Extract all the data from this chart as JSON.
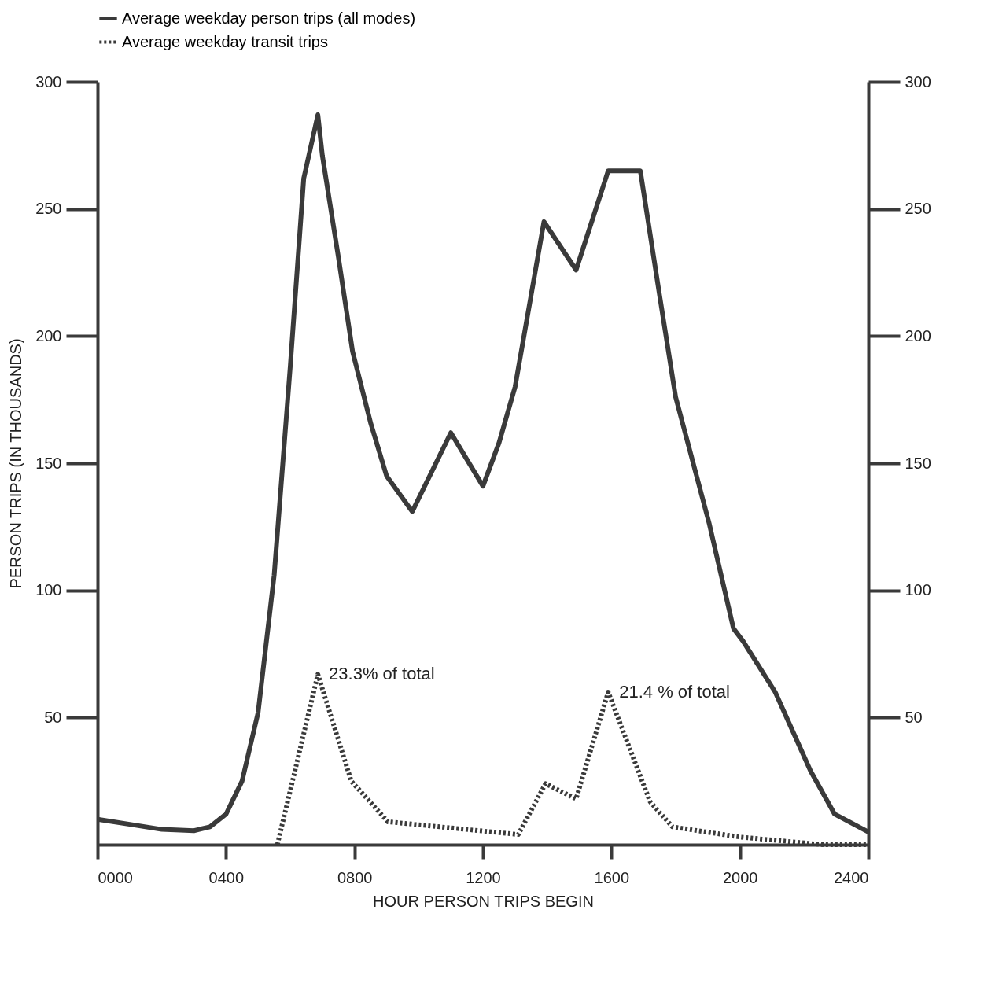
{
  "chart_data": {
    "type": "line",
    "xlabel": "HOUR PERSON TRIPS BEGIN",
    "ylabel": "PERSON TRIPS (IN THOUSANDS)",
    "legend": "top left",
    "grid": false,
    "marker": "none",
    "xlim": [
      0,
      2400
    ],
    "xticks": [
      {
        "value": 0,
        "label": "0000"
      },
      {
        "value": 400,
        "label": "0400"
      },
      {
        "value": 800,
        "label": "0800"
      },
      1200,
      1600,
      2000,
      2400
    ],
    "ylim": [
      0,
      300
    ],
    "yticks": [
      50,
      100,
      150,
      200,
      250,
      300
    ],
    "y2lim": [
      0,
      300
    ],
    "y2ticks": [
      50,
      100,
      150,
      200,
      250,
      300
    ],
    "series": [
      {
        "name": "Average weekday person trips (all modes)",
        "color": "#3a3a3a",
        "line_style": "solid",
        "x": [
          0,
          100,
          200,
          300,
          350,
          400,
          450,
          500,
          550,
          600,
          642,
          686,
          700,
          750,
          794,
          850,
          900,
          980,
          1100,
          1200,
          1250,
          1300,
          1390,
          1490,
          1590,
          1690,
          1750,
          1800,
          1905,
          1980,
          2010,
          2110,
          2220,
          2295,
          2400
        ],
        "values": [
          10,
          8,
          6,
          5.5,
          7,
          12,
          25,
          52,
          106,
          188,
          262,
          287,
          271,
          231,
          194,
          166,
          145,
          131,
          162,
          141,
          158,
          180,
          245,
          226,
          265,
          265,
          216,
          176,
          126,
          85,
          80,
          60,
          29,
          12,
          5
        ]
      },
      {
        "name": "Average weekday transit trips",
        "color": "#3a3a3a",
        "line_style": "dotted",
        "x": [
          560,
          686,
          790,
          904,
          1310,
          1395,
          1490,
          1590,
          1720,
          1790,
          2000,
          2260,
          2400
        ],
        "values": [
          0,
          67,
          25,
          9,
          4,
          24,
          18,
          60,
          17,
          7,
          3,
          0,
          0
        ]
      }
    ],
    "annotations": [
      {
        "text": "23.3% of total",
        "x": 686,
        "y": 67
      },
      {
        "text": "21.4 % of total",
        "x": 1590,
        "y": 60
      }
    ]
  }
}
